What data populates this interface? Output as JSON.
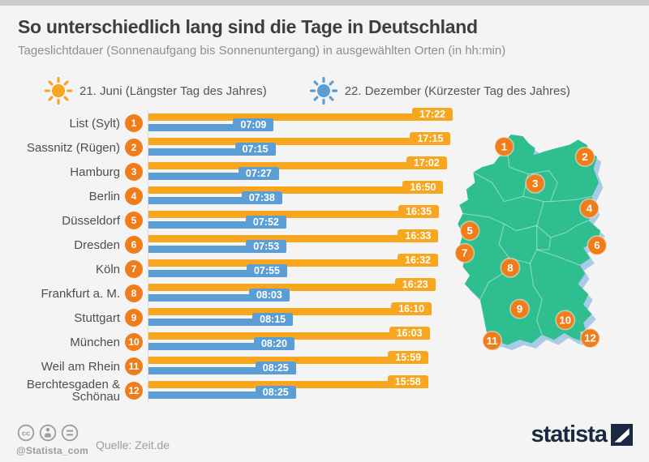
{
  "header": {
    "title": "So unterschiedlich lang sind die Tage in Deutschland",
    "subtitle": "Tageslichtdauer (Sonnenaufgang bis Sonnenuntergang) in ausgewählten Orten (in hh:min)"
  },
  "legend": {
    "june": {
      "icon": "summer-sun-icon",
      "label": "21. Juni (Längster Tag des Jahres)"
    },
    "december": {
      "icon": "winter-sun-icon",
      "label": "22. Dezember (Kürzester Tag des Jahres)"
    }
  },
  "chart_data": {
    "type": "bar",
    "orientation": "horizontal",
    "title": "So unterschiedlich lang sind die Tage in Deutschland",
    "unit": "hh:min",
    "value_axis_max": "17:22",
    "categories": [
      "List (Sylt)",
      "Sassnitz (Rügen)",
      "Hamburg",
      "Berlin",
      "Düsseldorf",
      "Dresden",
      "Köln",
      "Frankfurt a. M.",
      "Stuttgart",
      "München",
      "Weil am Rhein",
      "Berchtesgaden & Schönau"
    ],
    "rank_labels": [
      1,
      2,
      3,
      4,
      5,
      6,
      7,
      8,
      9,
      10,
      11,
      12
    ],
    "series": [
      {
        "name": "21. Juni (Längster Tag des Jahres)",
        "color": "#F8A61D",
        "values": [
          "17:22",
          "17:15",
          "17:02",
          "16:50",
          "16:35",
          "16:33",
          "16:32",
          "16:23",
          "16:10",
          "16:03",
          "15:59",
          "15:58"
        ]
      },
      {
        "name": "22. Dezember (Kürzester Tag des Jahres)",
        "color": "#5B9ED5",
        "values": [
          "07:09",
          "07:15",
          "07:27",
          "07:38",
          "07:52",
          "07:53",
          "07:55",
          "08:03",
          "08:15",
          "08:20",
          "08:25",
          "08:25"
        ]
      }
    ],
    "legend_position": "top",
    "grid": false
  },
  "map": {
    "region": "Deutschland",
    "marker_count": 12
  },
  "colors": {
    "june_bar": "#F8A61D",
    "december_bar": "#5B9ED5",
    "rank_badge": "#EF7D1C",
    "map_fill": "#2FBE8F",
    "map_shadow": "#A9CBE8",
    "brand_navy": "#1B2A40",
    "background": "#F4F4F4"
  },
  "footer": {
    "license_icons": [
      "cc-icon",
      "attribution-icon",
      "equal-icon"
    ],
    "handle": "@Statista_com",
    "source": "Quelle: Zeit.de",
    "brand": "statista"
  }
}
